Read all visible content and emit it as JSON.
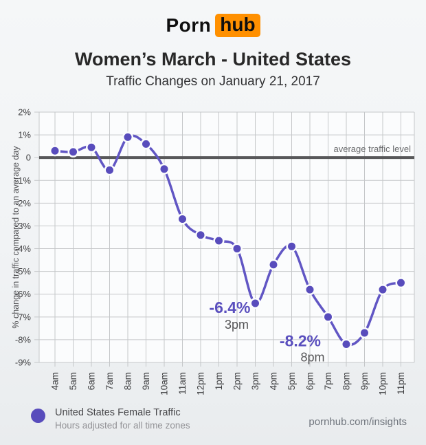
{
  "header": {
    "logo": {
      "text_black": "Porn",
      "text_badge": "hub",
      "badge_color": "#ff9000"
    },
    "title": "Women’s March - United States",
    "subtitle": "Traffic Changes on January 21, 2017"
  },
  "chart_data": {
    "type": "line",
    "title": "Women’s March - United States",
    "subtitle": "Traffic Changes on January 21, 2017",
    "x": [
      "4am",
      "5am",
      "6am",
      "7am",
      "8am",
      "9am",
      "10am",
      "11am",
      "12pm",
      "1pm",
      "2pm",
      "3pm",
      "4pm",
      "5pm",
      "6pm",
      "7pm",
      "8pm",
      "9pm",
      "10pm",
      "11pm"
    ],
    "values": [
      0.3,
      0.25,
      0.45,
      -0.55,
      0.9,
      0.6,
      -0.5,
      -2.7,
      -3.4,
      -3.65,
      -4.0,
      -6.4,
      -4.7,
      -3.9,
      -5.8,
      -7.0,
      -8.2,
      -7.7,
      -5.8,
      -5.5
    ],
    "ylabel": "% change in traffic compared to an average day",
    "ytick_labels": [
      "2%",
      "1%",
      "0",
      "-1%",
      "-2%",
      "-3%",
      "-4%",
      "-5%",
      "-6%",
      "-7%",
      "-8%",
      "-9%"
    ],
    "ylim": [
      -9,
      2
    ],
    "grid": true,
    "legend_position": "bottom-left",
    "baseline": {
      "value": 0,
      "label": "average traffic level"
    },
    "annotations": [
      {
        "text": "-6.4%",
        "subtext": "3pm",
        "index": 11,
        "value": -6.4
      },
      {
        "text": "-8.2%",
        "subtext": "8pm",
        "index": 16,
        "value": -8.2
      }
    ],
    "colors": {
      "line": "#6156c4",
      "marker": "#584cbc",
      "baseline": "#58585a",
      "grid": "#c5c7c9",
      "annotation": "#5a4fbe",
      "annotation_time": "#545456",
      "tick_text": "#3e3e40",
      "axis_title": "#515154"
    }
  },
  "legend": {
    "label": "United States Female Traffic",
    "sublabel": "Hours adjusted for all time zones",
    "marker_color": "#584cbc"
  },
  "footer": {
    "text": "pornhub.com/insights"
  }
}
